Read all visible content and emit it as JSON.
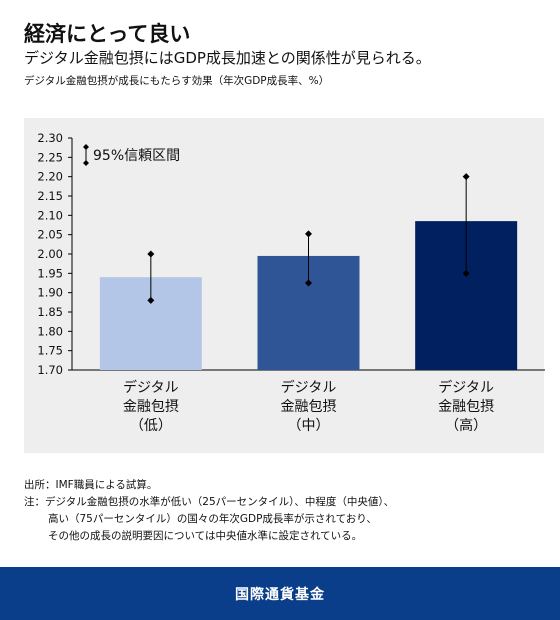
{
  "header": {
    "title": "経済にとって良い",
    "subtitle": "デジタル金融包摂にはGDP成長加速との関係性が見られる。",
    "caption": "デジタル金融包摂が成長にもたらす効果（年次GDP成長率、%）"
  },
  "chart_data": {
    "type": "bar",
    "categories": [
      [
        "デジタル",
        "金融包摂",
        "（低）"
      ],
      [
        "デジタル",
        "金融包摂",
        "（中）"
      ],
      [
        "デジタル",
        "金融包摂",
        "（高）"
      ]
    ],
    "values": [
      1.94,
      1.995,
      2.085
    ],
    "ci_low": [
      1.88,
      1.925,
      1.95
    ],
    "ci_high": [
      2.0,
      2.052,
      2.2
    ],
    "colors": [
      "#b4c6e7",
      "#2f5597",
      "#002060"
    ],
    "ylim": [
      1.7,
      2.3
    ],
    "yticks": [
      "1.70",
      "1.75",
      "1.80",
      "1.85",
      "1.90",
      "1.95",
      "2.00",
      "2.05",
      "2.10",
      "2.15",
      "2.20",
      "2.25",
      "2.30"
    ],
    "legend": "95%信頼区間",
    "background": "#eeeeee"
  },
  "footnotes": {
    "source": "出所：IMF職員による試算。",
    "note_line1": "注：デジタル金融包摂の水準が低い（25パーセンタイル）、中程度（中央値）、",
    "note_line2": "高い（75パーセンタイル）の国々の年次GDP成長率が示されており、",
    "note_line3": "その他の成長の説明要因については中央値水準に設定されている。"
  },
  "footer": {
    "label": "国際通貨基金",
    "color": "#0b3e8a"
  }
}
